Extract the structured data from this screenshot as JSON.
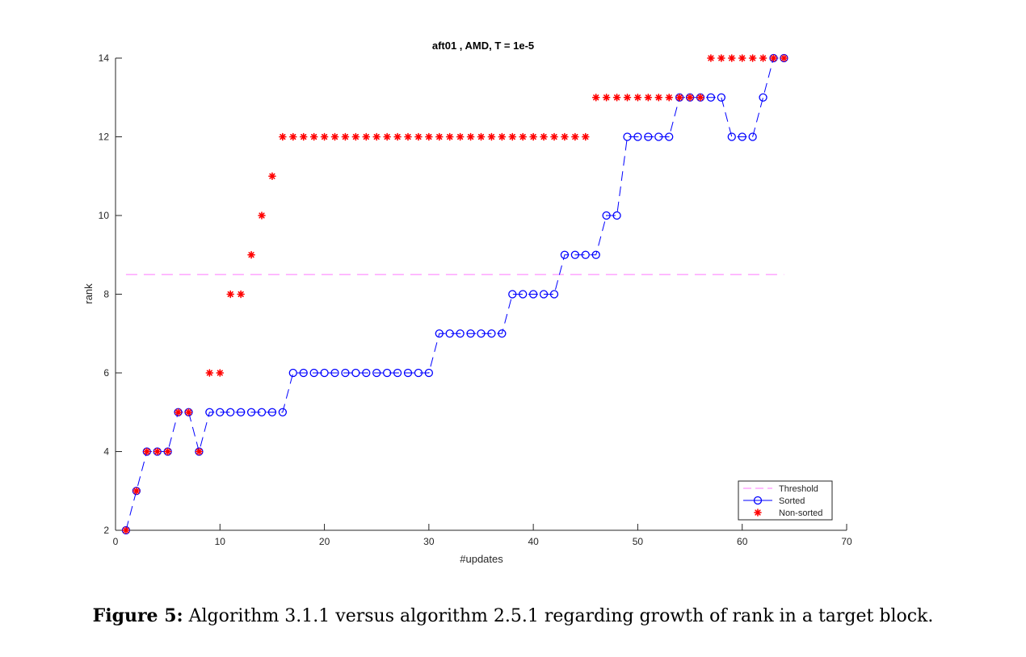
{
  "chart_data": {
    "type": "line",
    "title": "aft01 , AMD, T = 1e-5",
    "xlabel": "#updates",
    "ylabel": "rank",
    "xlim": [
      0,
      70
    ],
    "ylim": [
      2,
      14
    ],
    "xticks": [
      0,
      10,
      20,
      30,
      40,
      50,
      60,
      70
    ],
    "yticks": [
      2,
      4,
      6,
      8,
      10,
      12,
      14
    ],
    "grid": false,
    "legend_position": "bottom-right",
    "series": [
      {
        "name": "Threshold",
        "style": "dashed-line",
        "color": "#ff77ff",
        "x": [
          1,
          64
        ],
        "y": [
          8.5,
          8.5
        ]
      },
      {
        "name": "Sorted",
        "style": "dashed-line-circle",
        "color": "#0000ff",
        "x": [
          1,
          2,
          3,
          4,
          5,
          6,
          7,
          8,
          9,
          10,
          11,
          12,
          13,
          14,
          15,
          16,
          17,
          18,
          19,
          20,
          21,
          22,
          23,
          24,
          25,
          26,
          27,
          28,
          29,
          30,
          31,
          32,
          33,
          34,
          35,
          36,
          37,
          38,
          39,
          40,
          41,
          42,
          43,
          44,
          45,
          46,
          47,
          48,
          49,
          50,
          51,
          52,
          53,
          54,
          55,
          56,
          57,
          58,
          59,
          60,
          61,
          62,
          63,
          64
        ],
        "y": [
          2,
          3,
          4,
          4,
          4,
          5,
          5,
          4,
          5,
          5,
          5,
          5,
          5,
          5,
          5,
          5,
          6,
          6,
          6,
          6,
          6,
          6,
          6,
          6,
          6,
          6,
          6,
          6,
          6,
          6,
          7,
          7,
          7,
          7,
          7,
          7,
          7,
          8,
          8,
          8,
          8,
          8,
          9,
          9,
          9,
          9,
          10,
          10,
          12,
          12,
          12,
          12,
          12,
          13,
          13,
          13,
          13,
          13,
          12,
          12,
          12,
          13,
          14,
          14
        ]
      },
      {
        "name": "Non-sorted",
        "style": "star-marker",
        "color": "#ff0000",
        "x": [
          1,
          2,
          3,
          4,
          5,
          6,
          7,
          8,
          9,
          10,
          11,
          12,
          13,
          14,
          15,
          16,
          17,
          18,
          19,
          20,
          21,
          22,
          23,
          24,
          25,
          26,
          27,
          28,
          29,
          30,
          31,
          32,
          33,
          34,
          35,
          36,
          37,
          38,
          39,
          40,
          41,
          42,
          43,
          44,
          45,
          46,
          47,
          48,
          49,
          50,
          51,
          52,
          53,
          54,
          55,
          56,
          57,
          58,
          59,
          60,
          61,
          62,
          63,
          64
        ],
        "y": [
          2,
          3,
          4,
          4,
          4,
          5,
          5,
          4,
          6,
          6,
          8,
          8,
          9,
          10,
          11,
          12,
          12,
          12,
          12,
          12,
          12,
          12,
          12,
          12,
          12,
          12,
          12,
          12,
          12,
          12,
          12,
          12,
          12,
          12,
          12,
          12,
          12,
          12,
          12,
          12,
          12,
          12,
          12,
          12,
          12,
          13,
          13,
          13,
          13,
          13,
          13,
          13,
          13,
          13,
          13,
          13,
          14,
          14,
          14,
          14,
          14,
          14,
          14,
          14
        ]
      }
    ]
  },
  "caption": {
    "label": "Figure 5:",
    "text": " Algorithm 3.1.1 versus algorithm 2.5.1 regarding growth of rank in a target block."
  }
}
